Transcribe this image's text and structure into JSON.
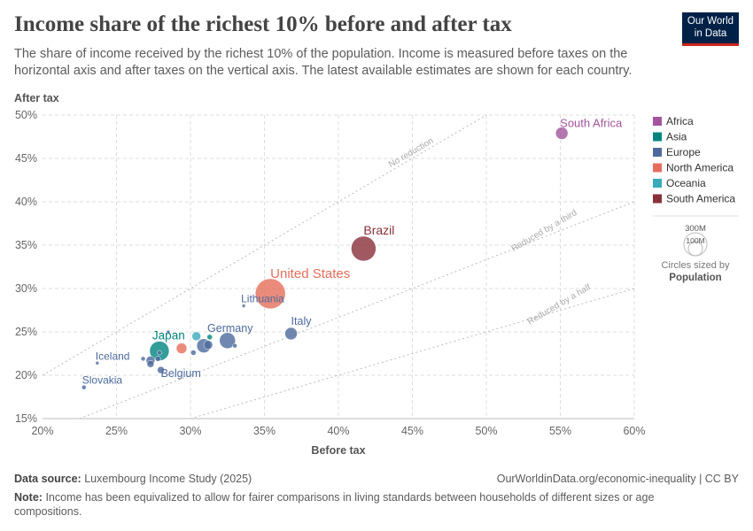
{
  "header": {
    "title": "Income share of the richest 10% before and after tax",
    "subtitle": "The share of income received by the richest 10% of the population. Income is measured before taxes on the horizontal axis and after taxes on the vertical axis. The latest available estimates are shown for each country.",
    "logo": "Our World in Data"
  },
  "chart_data": {
    "type": "scatter",
    "xlabel": "Before tax",
    "ylabel": "After tax",
    "xlim": [
      20,
      60
    ],
    "ylim": [
      15,
      50
    ],
    "xticks": [
      "20%",
      "25%",
      "30%",
      "35%",
      "40%",
      "45%",
      "50%",
      "55%",
      "60%"
    ],
    "yticks": [
      "15%",
      "20%",
      "25%",
      "30%",
      "35%",
      "40%",
      "45%",
      "50%"
    ],
    "grid": true,
    "legend_placement": "right",
    "legend": [
      {
        "name": "Africa",
        "color": "#a2559c"
      },
      {
        "name": "Asia",
        "color": "#00847e"
      },
      {
        "name": "Europe",
        "color": "#4c6a9c"
      },
      {
        "name": "North America",
        "color": "#e56e5a"
      },
      {
        "name": "Oceania",
        "color": "#38aaba"
      },
      {
        "name": "South America",
        "color": "#883039"
      }
    ],
    "reference_lines": [
      {
        "label": "No reduction",
        "slope": 1
      },
      {
        "label": "Reduced by a third",
        "slope": 0.6667
      },
      {
        "label": "Reduced by a half",
        "slope": 0.5
      }
    ],
    "size_legend": {
      "large": "300M",
      "small": "100M",
      "caption": "Circles sized by",
      "variable": "Population"
    },
    "points": [
      {
        "label": "South Africa",
        "x": 55.1,
        "y": 47.9,
        "region": "Africa",
        "size": 7
      },
      {
        "label": "Brazil",
        "x": 41.7,
        "y": 34.6,
        "region": "South America",
        "size": 14
      },
      {
        "label": "United States",
        "x": 35.4,
        "y": 29.4,
        "region": "North America",
        "size": 17
      },
      {
        "label": "Lithuania",
        "x": 33.6,
        "y": 28.0,
        "region": "Europe",
        "size": 2
      },
      {
        "label": "Italy",
        "x": 36.8,
        "y": 24.8,
        "region": "Europe",
        "size": 7
      },
      {
        "label": "Germany",
        "x": 32.5,
        "y": 24.0,
        "region": "Europe",
        "size": 9
      },
      {
        "label": "Japan",
        "x": 27.9,
        "y": 22.8,
        "region": "Asia",
        "size": 11
      },
      {
        "label": "Iceland",
        "x": 23.7,
        "y": 21.4,
        "region": "Europe",
        "size": 2
      },
      {
        "label": "Slovakia",
        "x": 22.8,
        "y": 18.6,
        "region": "Europe",
        "size": 2.5
      },
      {
        "label": "Belgium",
        "x": 28.0,
        "y": 20.6,
        "region": "Europe",
        "size": 4
      },
      {
        "label": "",
        "x": 26.8,
        "y": 21.9,
        "region": "Europe",
        "size": 2.5
      },
      {
        "label": "",
        "x": 27.3,
        "y": 21.7,
        "region": "Europe",
        "size": 5
      },
      {
        "label": "",
        "x": 27.3,
        "y": 21.3,
        "region": "Europe",
        "size": 4
      },
      {
        "label": "",
        "x": 27.8,
        "y": 21.9,
        "region": "Europe",
        "size": 3
      },
      {
        "label": "",
        "x": 28.5,
        "y": 25.0,
        "region": "Europe",
        "size": 2
      },
      {
        "label": "",
        "x": 30.4,
        "y": 24.5,
        "region": "Oceania",
        "size": 5
      },
      {
        "label": "",
        "x": 31.3,
        "y": 24.4,
        "region": "Asia",
        "size": 3
      },
      {
        "label": "",
        "x": 29.4,
        "y": 23.1,
        "region": "North America",
        "size": 6
      },
      {
        "label": "",
        "x": 30.9,
        "y": 23.4,
        "region": "Europe",
        "size": 8
      },
      {
        "label": "",
        "x": 31.2,
        "y": 23.5,
        "region": "Europe",
        "size": 5
      },
      {
        "label": "",
        "x": 30.2,
        "y": 22.6,
        "region": "Europe",
        "size": 3
      },
      {
        "label": "",
        "x": 33.0,
        "y": 23.4,
        "region": "Europe",
        "size": 2.5
      },
      {
        "label": "",
        "x": 27.9,
        "y": 22.6,
        "region": "Europe",
        "size": 2.5
      }
    ]
  },
  "footer": {
    "source_label": "Data source:",
    "source": "Luxembourg Income Study (2025)",
    "url": "OurWorldinData.org/economic-inequality | CC BY",
    "note_label": "Note:",
    "note": "Income has been equivalized to allow for fairer comparisons in living standards between households of different sizes or age compositions."
  }
}
